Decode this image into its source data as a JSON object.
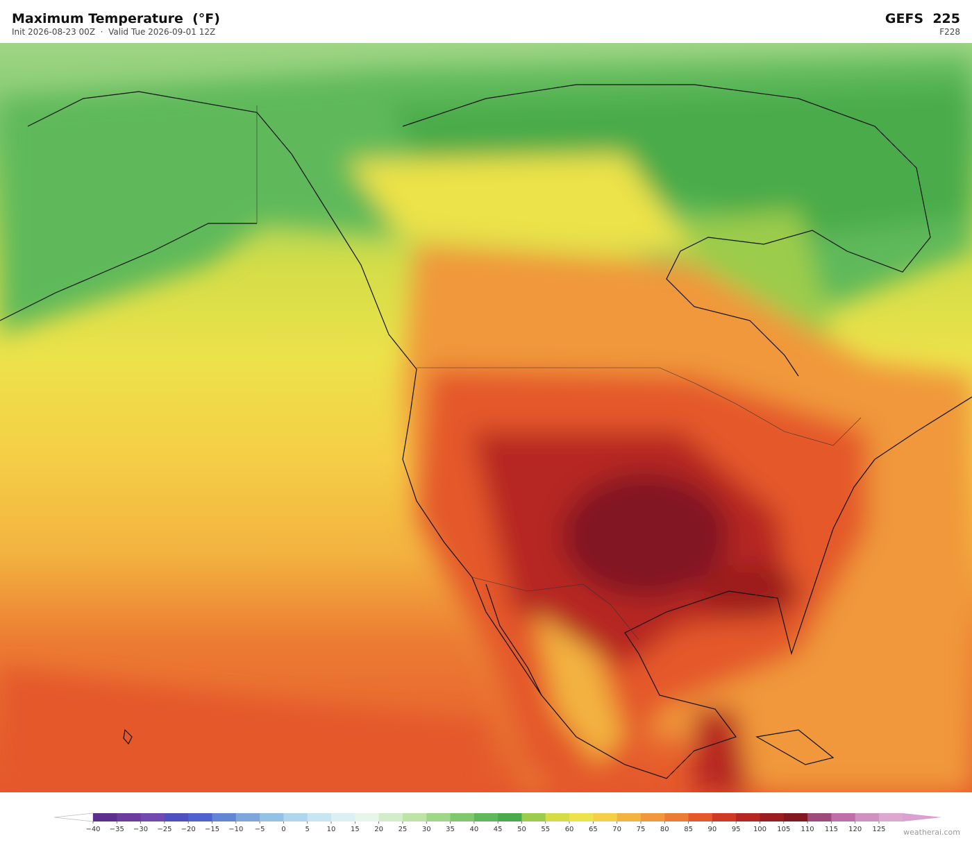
{
  "header": {
    "title": "Maximum Temperature  (°F)",
    "subtitle": "Init 2026-08-23 00Z  ·  Valid Tue 2026-09-01 12Z",
    "model": "GEFS  225",
    "forecast_hour": "F228"
  },
  "colorbar": {
    "ticks": [
      {
        "value": -40,
        "label": "−40"
      },
      {
        "value": -35,
        "label": "−35"
      },
      {
        "value": -30,
        "label": "−30"
      },
      {
        "value": -25,
        "label": "−25"
      },
      {
        "value": -20,
        "label": "−20"
      },
      {
        "value": -15,
        "label": "−15"
      },
      {
        "value": -10,
        "label": "−10"
      },
      {
        "value": -5,
        "label": "−5"
      },
      0,
      5,
      10,
      15,
      20,
      25,
      30,
      35,
      40,
      45,
      50,
      55,
      60,
      65,
      70,
      75,
      80,
      85,
      90,
      95,
      100,
      105,
      110,
      115,
      120,
      125
    ],
    "colors": [
      "#5c2e8e",
      "#6b3c9e",
      "#7249b0",
      "#4f4fc0",
      "#4e63cf",
      "#6286d4",
      "#7ea6dc",
      "#94c2e4",
      "#aed6ec",
      "#c8e6f1",
      "#dcf0f3",
      "#e8f5ea",
      "#d3edcb",
      "#bde4a6",
      "#a0d687",
      "#80c86c",
      "#5fb95a",
      "#4aab4a",
      "#9ccc4c",
      "#d4dd48",
      "#ece24a",
      "#f5cf46",
      "#f3b340",
      "#f0983a",
      "#ec7b33",
      "#e4582b",
      "#d03a25",
      "#b62722",
      "#9c1d1f",
      "#821820",
      "#9e4a7a",
      "#bf6ea8",
      "#d090c0",
      "#dca8d0"
    ],
    "under_color": "#ffffff",
    "over_color": "#d9a0d0"
  },
  "footer": {
    "watermark": "weatherai.com"
  }
}
